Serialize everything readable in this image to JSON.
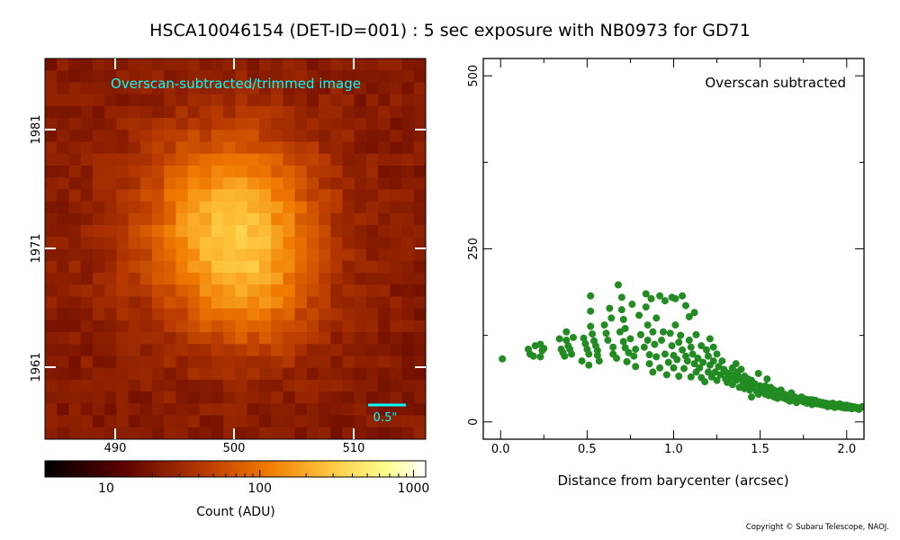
{
  "title": "HSCA10046154 (DET-ID=001) :  5 sec exposure with NB0973 for GD71",
  "copyright": "Copyright © Subaru Telescope, NAOJ.",
  "colors": {
    "scatter": "#228b22",
    "annotation": "#00ffff"
  },
  "image_panel": {
    "label": "Overscan-subtracted/trimmed image",
    "scale_bar_label": "0.5\"",
    "x_ticks": [
      "490",
      "500",
      "510"
    ],
    "y_ticks": [
      "1981",
      "1971",
      "1961"
    ],
    "colormap": "afmhot"
  },
  "colorbar": {
    "label": "Count (ADU)",
    "ticks": [
      "10",
      "100",
      "1000"
    ],
    "scale": "log",
    "range": [
      4,
      1200
    ]
  },
  "chart_data": {
    "type": "scatter",
    "annotation": "Overscan subtracted",
    "xlabel": "Distance from barycenter (arcsec)",
    "ylabel": "",
    "xlim": [
      -0.1,
      2.1
    ],
    "ylim": [
      -25,
      525
    ],
    "x_ticks": [
      "0.0",
      "0.5",
      "1.0",
      "1.5",
      "2.0"
    ],
    "y_ticks": [
      "0",
      "250",
      "500"
    ],
    "grid": false,
    "points": [
      [
        0.01,
        91
      ],
      [
        0.16,
        105
      ],
      [
        0.17,
        98
      ],
      [
        0.19,
        95
      ],
      [
        0.2,
        110
      ],
      [
        0.23,
        112
      ],
      [
        0.23,
        94
      ],
      [
        0.24,
        103
      ],
      [
        0.25,
        106
      ],
      [
        0.34,
        120
      ],
      [
        0.35,
        105
      ],
      [
        0.36,
        100
      ],
      [
        0.37,
        95
      ],
      [
        0.38,
        130
      ],
      [
        0.38,
        118
      ],
      [
        0.39,
        110
      ],
      [
        0.4,
        105
      ],
      [
        0.41,
        98
      ],
      [
        0.42,
        122
      ],
      [
        0.47,
        88
      ],
      [
        0.48,
        121
      ],
      [
        0.49,
        113
      ],
      [
        0.5,
        105
      ],
      [
        0.51,
        98
      ],
      [
        0.51,
        82
      ],
      [
        0.52,
        182
      ],
      [
        0.52,
        160
      ],
      [
        0.52,
        138
      ],
      [
        0.53,
        127
      ],
      [
        0.54,
        117
      ],
      [
        0.55,
        110
      ],
      [
        0.56,
        103
      ],
      [
        0.56,
        96
      ],
      [
        0.57,
        88
      ],
      [
        0.6,
        140
      ],
      [
        0.61,
        128
      ],
      [
        0.62,
        118
      ],
      [
        0.63,
        164
      ],
      [
        0.64,
        150
      ],
      [
        0.65,
        108
      ],
      [
        0.65,
        98
      ],
      [
        0.67,
        92
      ],
      [
        0.68,
        198
      ],
      [
        0.69,
        130
      ],
      [
        0.7,
        180
      ],
      [
        0.7,
        162
      ],
      [
        0.71,
        148
      ],
      [
        0.71,
        116
      ],
      [
        0.72,
        135
      ],
      [
        0.72,
        107
      ],
      [
        0.73,
        87
      ],
      [
        0.74,
        100
      ],
      [
        0.75,
        120
      ],
      [
        0.76,
        170
      ],
      [
        0.77,
        95
      ],
      [
        0.78,
        105
      ],
      [
        0.78,
        80
      ],
      [
        0.8,
        154
      ],
      [
        0.81,
        126
      ],
      [
        0.83,
        108
      ],
      [
        0.84,
        185
      ],
      [
        0.84,
        166
      ],
      [
        0.85,
        140
      ],
      [
        0.85,
        118
      ],
      [
        0.86,
        97
      ],
      [
        0.86,
        84
      ],
      [
        0.87,
        178
      ],
      [
        0.88,
        130
      ],
      [
        0.88,
        72
      ],
      [
        0.89,
        112
      ],
      [
        0.9,
        94
      ],
      [
        0.9,
        150
      ],
      [
        0.92,
        182
      ],
      [
        0.92,
        78
      ],
      [
        0.93,
        118
      ],
      [
        0.94,
        130
      ],
      [
        0.95,
        98
      ],
      [
        0.95,
        175
      ],
      [
        0.96,
        68
      ],
      [
        0.97,
        86
      ],
      [
        0.98,
        128
      ],
      [
        0.99,
        180
      ],
      [
        0.99,
        110
      ],
      [
        1.0,
        96
      ],
      [
        1.0,
        78
      ],
      [
        1.01,
        178
      ],
      [
        1.01,
        140
      ],
      [
        1.02,
        90
      ],
      [
        1.03,
        66
      ],
      [
        1.03,
        115
      ],
      [
        1.04,
        125
      ],
      [
        1.05,
        182
      ],
      [
        1.05,
        104
      ],
      [
        1.06,
        77
      ],
      [
        1.07,
        95
      ],
      [
        1.07,
        168
      ],
      [
        1.08,
        88
      ],
      [
        1.09,
        152
      ],
      [
        1.09,
        118
      ],
      [
        1.1,
        65
      ],
      [
        1.1,
        108
      ],
      [
        1.11,
        98
      ],
      [
        1.12,
        84
      ],
      [
        1.12,
        158
      ],
      [
        1.13,
        72
      ],
      [
        1.13,
        126
      ],
      [
        1.14,
        92
      ],
      [
        1.15,
        78
      ],
      [
        1.16,
        64
      ],
      [
        1.16,
        110
      ],
      [
        1.17,
        86
      ],
      [
        1.18,
        58
      ],
      [
        1.19,
        104
      ],
      [
        1.2,
        72
      ],
      [
        1.2,
        95
      ],
      [
        1.21,
        120
      ],
      [
        1.21,
        82
      ],
      [
        1.22,
        65
      ],
      [
        1.23,
        108
      ],
      [
        1.23,
        88
      ],
      [
        1.24,
        72
      ],
      [
        1.25,
        60
      ],
      [
        1.25,
        98
      ],
      [
        1.26,
        80
      ],
      [
        1.27,
        68
      ],
      [
        1.28,
        88
      ],
      [
        1.29,
        76
      ],
      [
        1.3,
        62
      ],
      [
        1.3,
        72
      ],
      [
        1.31,
        57
      ],
      [
        1.32,
        70
      ],
      [
        1.33,
        64
      ],
      [
        1.34,
        78
      ],
      [
        1.34,
        54
      ],
      [
        1.35,
        68
      ],
      [
        1.36,
        84
      ],
      [
        1.36,
        60
      ],
      [
        1.37,
        72
      ],
      [
        1.38,
        50
      ],
      [
        1.38,
        64
      ],
      [
        1.39,
        76
      ],
      [
        1.4,
        58
      ],
      [
        1.41,
        48
      ],
      [
        1.41,
        66
      ],
      [
        1.42,
        55
      ],
      [
        1.43,
        62
      ],
      [
        1.44,
        46
      ],
      [
        1.44,
        52
      ],
      [
        1.45,
        60
      ],
      [
        1.45,
        36
      ],
      [
        1.46,
        49
      ],
      [
        1.47,
        55
      ],
      [
        1.48,
        44
      ],
      [
        1.49,
        70
      ],
      [
        1.49,
        40
      ],
      [
        1.5,
        52
      ],
      [
        1.51,
        47
      ],
      [
        1.52,
        43
      ],
      [
        1.53,
        40
      ],
      [
        1.53,
        52
      ],
      [
        1.54,
        62
      ],
      [
        1.55,
        45
      ],
      [
        1.55,
        38
      ],
      [
        1.56,
        50
      ],
      [
        1.57,
        42
      ],
      [
        1.58,
        36
      ],
      [
        1.58,
        46
      ],
      [
        1.59,
        40
      ],
      [
        1.6,
        34
      ],
      [
        1.6,
        44
      ],
      [
        1.61,
        38
      ],
      [
        1.62,
        46
      ],
      [
        1.63,
        35
      ],
      [
        1.64,
        40
      ],
      [
        1.65,
        33
      ],
      [
        1.66,
        38
      ],
      [
        1.67,
        30
      ],
      [
        1.67,
        36
      ],
      [
        1.68,
        42
      ],
      [
        1.69,
        31
      ],
      [
        1.7,
        36
      ],
      [
        1.71,
        28
      ],
      [
        1.72,
        34
      ],
      [
        1.73,
        31
      ],
      [
        1.74,
        36
      ],
      [
        1.75,
        29
      ],
      [
        1.76,
        33
      ],
      [
        1.77,
        27
      ],
      [
        1.78,
        32
      ],
      [
        1.79,
        29
      ],
      [
        1.8,
        25
      ],
      [
        1.8,
        32
      ],
      [
        1.81,
        28
      ],
      [
        1.82,
        31
      ],
      [
        1.83,
        26
      ],
      [
        1.84,
        29
      ],
      [
        1.85,
        25
      ],
      [
        1.86,
        28
      ],
      [
        1.87,
        24
      ],
      [
        1.88,
        27
      ],
      [
        1.89,
        22
      ],
      [
        1.9,
        26
      ],
      [
        1.91,
        23
      ],
      [
        1.92,
        27
      ],
      [
        1.93,
        21
      ],
      [
        1.94,
        25
      ],
      [
        1.95,
        22
      ],
      [
        1.96,
        26
      ],
      [
        1.97,
        21
      ],
      [
        1.98,
        24
      ],
      [
        1.99,
        20
      ],
      [
        2.0,
        24
      ],
      [
        2.01,
        20
      ],
      [
        2.02,
        23
      ],
      [
        2.03,
        19
      ],
      [
        2.04,
        22
      ],
      [
        2.05,
        20
      ],
      [
        2.06,
        21
      ],
      [
        2.07,
        18
      ],
      [
        2.08,
        20
      ],
      [
        2.09,
        22
      ]
    ]
  }
}
